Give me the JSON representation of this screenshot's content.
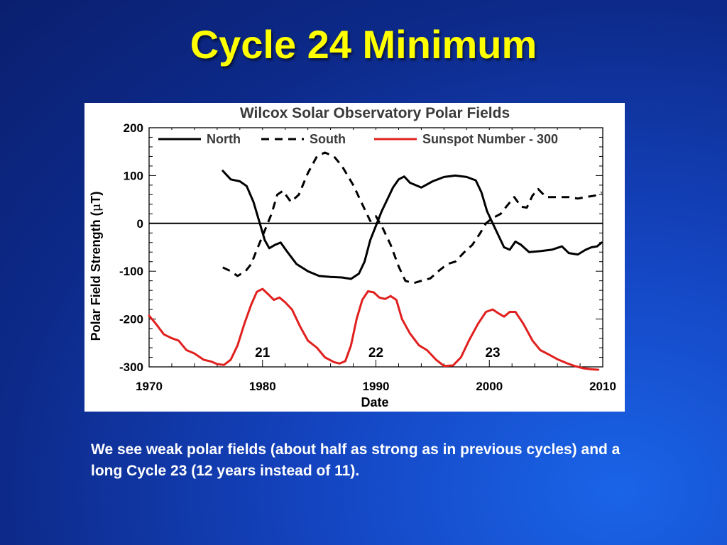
{
  "slide": {
    "title": "Cycle 24 Minimum",
    "caption": "We see weak polar fields (about half as strong as in previous cycles) and a long Cycle 23 (12 years instead of 11)."
  },
  "chart_data": {
    "type": "line",
    "title": "Wilcox Solar Observatory Polar Fields",
    "xlabel": "Date",
    "ylabel_main": "Polar Field Strength (",
    "ylabel_symbol": "μ",
    "ylabel_end": "T)",
    "xlim": [
      1970,
      2010
    ],
    "ylim": [
      -300,
      200
    ],
    "xticks": [
      1970,
      1980,
      1990,
      2000,
      2010
    ],
    "yticks": [
      200,
      100,
      0,
      -100,
      -200,
      -300
    ],
    "zero_line": true,
    "legend_placement": "top",
    "colors": {
      "north": "#000000",
      "south": "#000000",
      "sunspot": "#e0201e"
    },
    "legend": [
      "North",
      "South",
      "Sunspot Number - 300"
    ],
    "annotations": [
      {
        "text": "21",
        "x": 1980.0,
        "y": -270
      },
      {
        "text": "22",
        "x": 1990.0,
        "y": -270
      },
      {
        "text": "23",
        "x": 2000.3,
        "y": -270
      }
    ],
    "series": [
      {
        "name": "North",
        "style": "solid",
        "points": [
          [
            1976.5,
            110
          ],
          [
            1977.2,
            92
          ],
          [
            1978.0,
            88
          ],
          [
            1978.6,
            78
          ],
          [
            1979.2,
            45
          ],
          [
            1979.7,
            5
          ],
          [
            1980.2,
            -35
          ],
          [
            1980.6,
            -52
          ],
          [
            1981.1,
            -45
          ],
          [
            1981.6,
            -40
          ],
          [
            1982.2,
            -60
          ],
          [
            1983.0,
            -85
          ],
          [
            1984.0,
            -100
          ],
          [
            1985.0,
            -110
          ],
          [
            1986.0,
            -112
          ],
          [
            1987.0,
            -113
          ],
          [
            1987.8,
            -116
          ],
          [
            1988.5,
            -105
          ],
          [
            1989.0,
            -80
          ],
          [
            1989.5,
            -35
          ],
          [
            1990.0,
            -5
          ],
          [
            1990.5,
            25
          ],
          [
            1991.0,
            50
          ],
          [
            1991.5,
            75
          ],
          [
            1992.0,
            92
          ],
          [
            1992.5,
            98
          ],
          [
            1993.0,
            85
          ],
          [
            1994.0,
            75
          ],
          [
            1995.0,
            88
          ],
          [
            1996.0,
            97
          ],
          [
            1997.0,
            100
          ],
          [
            1998.0,
            97
          ],
          [
            1998.8,
            90
          ],
          [
            1999.3,
            65
          ],
          [
            1999.8,
            25
          ],
          [
            2000.3,
            0
          ],
          [
            2000.8,
            -25
          ],
          [
            2001.3,
            -50
          ],
          [
            2001.8,
            -55
          ],
          [
            2002.3,
            -38
          ],
          [
            2002.8,
            -45
          ],
          [
            2003.5,
            -60
          ],
          [
            2004.5,
            -58
          ],
          [
            2005.5,
            -55
          ],
          [
            2006.4,
            -48
          ],
          [
            2007.0,
            -62
          ],
          [
            2007.8,
            -65
          ],
          [
            2008.5,
            -55
          ],
          [
            2009.0,
            -50
          ],
          [
            2009.5,
            -48
          ],
          [
            2009.9,
            -40
          ]
        ]
      },
      {
        "name": "South",
        "style": "dashed",
        "points": [
          [
            1976.5,
            -92
          ],
          [
            1977.2,
            -100
          ],
          [
            1977.8,
            -110
          ],
          [
            1978.5,
            -100
          ],
          [
            1979.0,
            -85
          ],
          [
            1979.5,
            -55
          ],
          [
            1980.2,
            -15
          ],
          [
            1980.8,
            20
          ],
          [
            1981.3,
            60
          ],
          [
            1981.8,
            68
          ],
          [
            1982.5,
            45
          ],
          [
            1983.2,
            60
          ],
          [
            1984.0,
            105
          ],
          [
            1984.8,
            140
          ],
          [
            1985.5,
            148
          ],
          [
            1986.3,
            140
          ],
          [
            1987.0,
            120
          ],
          [
            1988.0,
            80
          ],
          [
            1988.8,
            40
          ],
          [
            1989.5,
            5
          ],
          [
            1990.0,
            15
          ],
          [
            1990.6,
            -10
          ],
          [
            1991.3,
            -45
          ],
          [
            1992.0,
            -90
          ],
          [
            1992.6,
            -120
          ],
          [
            1993.3,
            -125
          ],
          [
            1994.0,
            -120
          ],
          [
            1994.8,
            -115
          ],
          [
            1995.5,
            -100
          ],
          [
            1996.3,
            -85
          ],
          [
            1997.0,
            -80
          ],
          [
            1997.8,
            -60
          ],
          [
            1998.5,
            -45
          ],
          [
            1999.2,
            -20
          ],
          [
            1999.7,
            0
          ],
          [
            2000.2,
            10
          ],
          [
            2001.0,
            20
          ],
          [
            2001.6,
            38
          ],
          [
            2002.2,
            55
          ],
          [
            2002.8,
            35
          ],
          [
            2003.3,
            33
          ],
          [
            2003.8,
            58
          ],
          [
            2004.3,
            72
          ],
          [
            2005.0,
            55
          ],
          [
            2006.0,
            55
          ],
          [
            2007.0,
            55
          ],
          [
            2007.8,
            52
          ],
          [
            2008.5,
            55
          ],
          [
            2009.3,
            58
          ],
          [
            2009.9,
            65
          ]
        ]
      },
      {
        "name": "Sunspot Number - 300",
        "style": "solid",
        "points": [
          [
            1970.0,
            -193
          ],
          [
            1970.6,
            -210
          ],
          [
            1971.3,
            -232
          ],
          [
            1972.0,
            -240
          ],
          [
            1972.6,
            -245
          ],
          [
            1973.3,
            -265
          ],
          [
            1974.0,
            -272
          ],
          [
            1974.8,
            -285
          ],
          [
            1975.5,
            -289
          ],
          [
            1976.0,
            -294
          ],
          [
            1976.6,
            -296
          ],
          [
            1977.2,
            -285
          ],
          [
            1977.8,
            -255
          ],
          [
            1978.4,
            -210
          ],
          [
            1979.0,
            -170
          ],
          [
            1979.5,
            -143
          ],
          [
            1980.0,
            -137
          ],
          [
            1980.5,
            -148
          ],
          [
            1981.0,
            -160
          ],
          [
            1981.5,
            -155
          ],
          [
            1982.0,
            -165
          ],
          [
            1982.6,
            -180
          ],
          [
            1983.3,
            -215
          ],
          [
            1984.0,
            -245
          ],
          [
            1984.8,
            -260
          ],
          [
            1985.5,
            -280
          ],
          [
            1986.3,
            -290
          ],
          [
            1986.8,
            -293
          ],
          [
            1987.3,
            -288
          ],
          [
            1987.8,
            -255
          ],
          [
            1988.3,
            -200
          ],
          [
            1988.8,
            -160
          ],
          [
            1989.3,
            -142
          ],
          [
            1989.8,
            -144
          ],
          [
            1990.3,
            -155
          ],
          [
            1990.8,
            -158
          ],
          [
            1991.3,
            -152
          ],
          [
            1991.8,
            -160
          ],
          [
            1992.3,
            -200
          ],
          [
            1993.0,
            -230
          ],
          [
            1993.8,
            -255
          ],
          [
            1994.5,
            -265
          ],
          [
            1995.3,
            -285
          ],
          [
            1996.0,
            -298
          ],
          [
            1996.8,
            -297
          ],
          [
            1997.5,
            -280
          ],
          [
            1998.2,
            -245
          ],
          [
            1999.0,
            -210
          ],
          [
            1999.7,
            -185
          ],
          [
            2000.3,
            -180
          ],
          [
            2000.8,
            -188
          ],
          [
            2001.3,
            -195
          ],
          [
            2001.8,
            -185
          ],
          [
            2002.3,
            -185
          ],
          [
            2003.0,
            -210
          ],
          [
            2003.8,
            -245
          ],
          [
            2004.5,
            -265
          ],
          [
            2005.3,
            -275
          ],
          [
            2006.0,
            -284
          ],
          [
            2006.8,
            -292
          ],
          [
            2007.5,
            -298
          ],
          [
            2008.3,
            -303
          ],
          [
            2009.0,
            -305
          ],
          [
            2009.6,
            -306
          ]
        ]
      }
    ]
  }
}
